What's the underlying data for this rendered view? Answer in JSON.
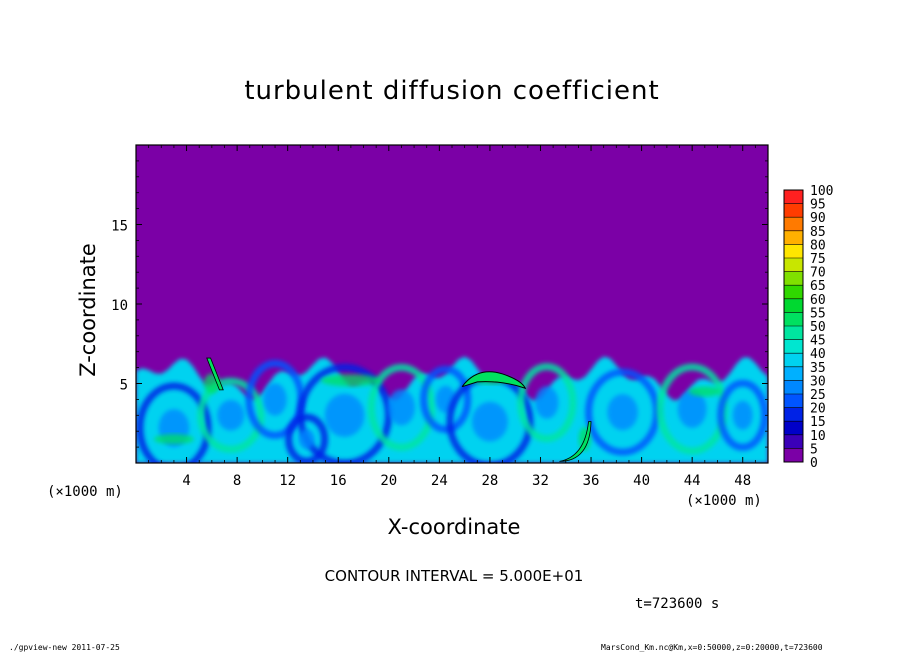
{
  "chart_data": {
    "type": "heatmap",
    "title": "turbulent diffusion coefficient",
    "xlabel": "X-coordinate",
    "ylabel": "Z-coordinate",
    "x_unit_label": "(×1000 m)",
    "xlim": [
      0,
      50
    ],
    "ylim": [
      0,
      20
    ],
    "x_ticks": [
      4,
      8,
      12,
      16,
      20,
      24,
      28,
      32,
      36,
      40,
      44,
      48
    ],
    "y_ticks": [
      5,
      10,
      15
    ],
    "colorbar": {
      "levels": [
        0,
        5,
        10,
        15,
        20,
        25,
        30,
        35,
        40,
        45,
        50,
        55,
        60,
        65,
        70,
        75,
        80,
        85,
        90,
        95,
        100
      ],
      "colors": [
        "#7b00a6",
        "#3b00b8",
        "#0000c8",
        "#0022e6",
        "#0055ff",
        "#0088ff",
        "#00b0ff",
        "#00d2f0",
        "#00e6d0",
        "#00e6a0",
        "#00e060",
        "#00d830",
        "#30d800",
        "#80e000",
        "#c8e600",
        "#ffe600",
        "#ffb000",
        "#ff7a00",
        "#ff3c00",
        "#ff2020",
        "#ff6060"
      ]
    },
    "field": {
      "background_value": 0,
      "turbulent_layer_top": 6.5,
      "contour_50_regions": [
        {
          "x_center": 28,
          "z_center": 5.2
        },
        {
          "x_center": 6,
          "z_center": 5.8
        },
        {
          "x_center": 35,
          "z_center": 1
        }
      ]
    },
    "grid": false,
    "legend": "colorbar-right"
  },
  "annotations": {
    "contour_interval": "CONTOUR INTERVAL = 5.000E+01",
    "time": "t=723600 s",
    "footer_left": "./gpview-new  2011-07-25",
    "footer_right": "MarsCond_Km.nc@Km,x=0:50000,z=0:20000,t=723600"
  }
}
